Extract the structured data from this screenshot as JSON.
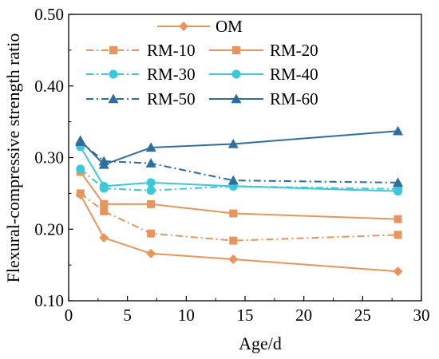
{
  "chart_data": {
    "type": "line",
    "title": "",
    "xlabel": "Age/d",
    "ylabel": "Flexural-compressive strength ratio",
    "xlim": [
      0,
      30
    ],
    "ylim": [
      0.1,
      0.5
    ],
    "x_ticks": [
      0,
      5,
      10,
      15,
      20,
      25,
      30
    ],
    "y_ticks": [
      0.1,
      0.2,
      0.3,
      0.4,
      0.5
    ],
    "x_tick_labels": [
      "0",
      "5",
      "10",
      "15",
      "20",
      "25",
      "30"
    ],
    "y_tick_labels": [
      "0.10",
      "0.20",
      "0.30",
      "0.40",
      "0.50"
    ],
    "grid": false,
    "legend_position": "top",
    "x": [
      1,
      3,
      7,
      14,
      28
    ],
    "series": [
      {
        "name": "OM",
        "values": [
          0.248,
          0.188,
          0.166,
          0.158,
          0.141
        ],
        "color": "#E8955C",
        "marker": "diamond",
        "dash": "solid"
      },
      {
        "name": "RM-10",
        "values": [
          0.25,
          0.225,
          0.194,
          0.184,
          0.192
        ],
        "color": "#E8955C",
        "marker": "square",
        "dash": "dashdot"
      },
      {
        "name": "RM-20",
        "values": [
          0.28,
          0.235,
          0.235,
          0.222,
          0.214
        ],
        "color": "#E8955C",
        "marker": "square",
        "dash": "solid"
      },
      {
        "name": "RM-30",
        "values": [
          0.284,
          0.257,
          0.254,
          0.26,
          0.256
        ],
        "color": "#3CC8D8",
        "marker": "circle",
        "dash": "dashdot"
      },
      {
        "name": "RM-40",
        "values": [
          0.315,
          0.26,
          0.265,
          0.26,
          0.253
        ],
        "color": "#3CC8D8",
        "marker": "circle",
        "dash": "solid"
      },
      {
        "name": "RM-50",
        "values": [
          0.322,
          0.295,
          0.292,
          0.268,
          0.265
        ],
        "color": "#2E6E9E",
        "marker": "triangle",
        "dash": "dashdot"
      },
      {
        "name": "RM-60",
        "values": [
          0.324,
          0.29,
          0.314,
          0.319,
          0.337
        ],
        "color": "#2E6E9E",
        "marker": "triangle",
        "dash": "solid"
      }
    ]
  }
}
